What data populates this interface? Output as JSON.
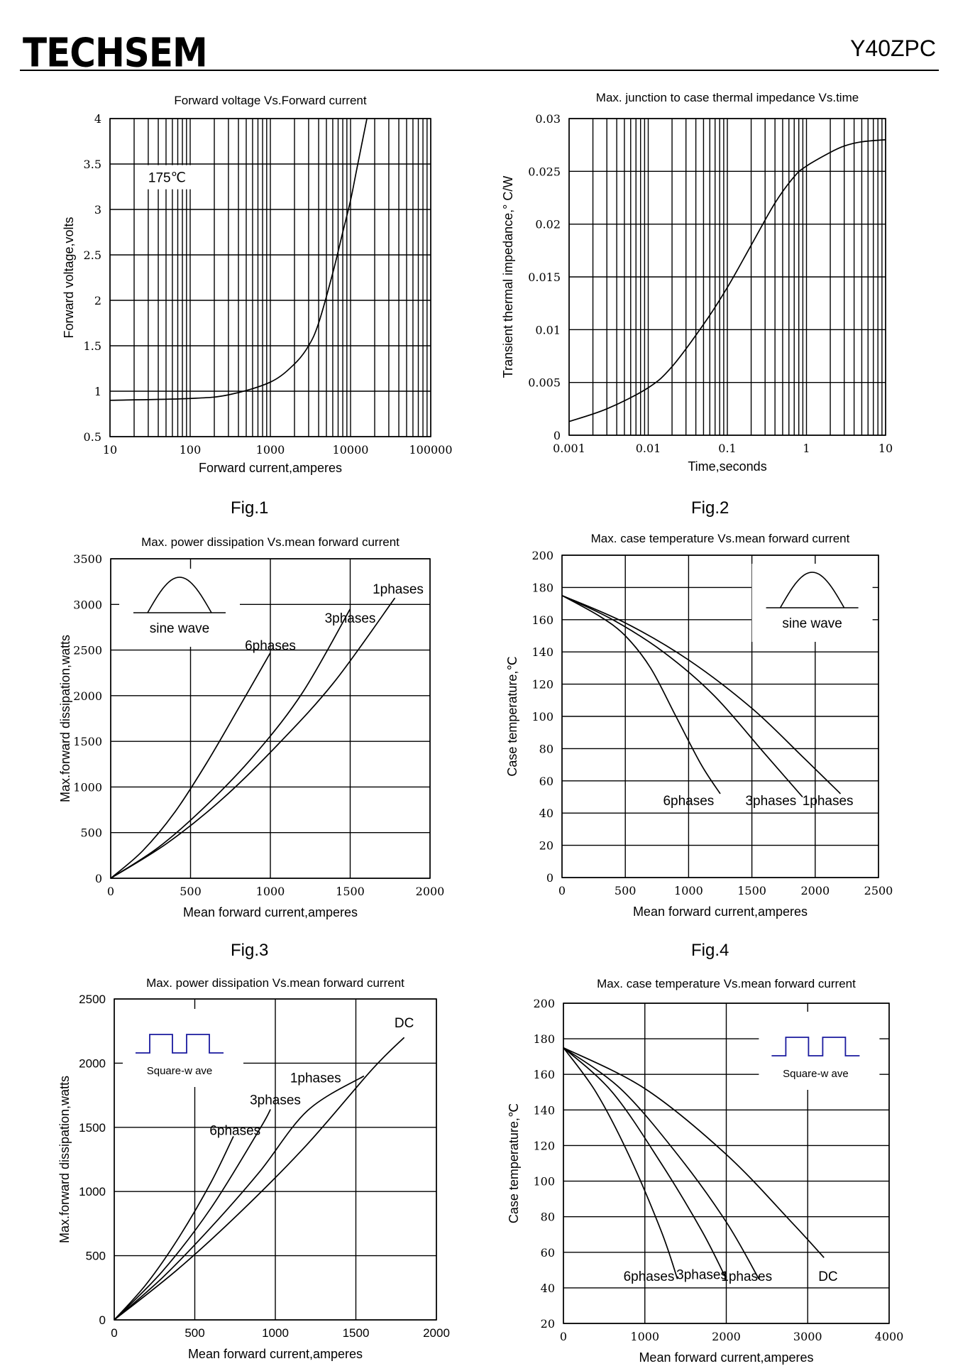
{
  "header": {
    "logo": "TECHSEM",
    "part_number": "Y40ZPC"
  },
  "figures": [
    "Fig.1",
    "Fig.2",
    "Fig.3",
    "Fig.4"
  ],
  "chart_data": [
    {
      "id": "fig1",
      "type": "line",
      "title": "Forward voltage Vs.Forward current",
      "xlabel": "Forward current,amperes",
      "ylabel": "Forward voltage,volts",
      "xscale": "log",
      "xlim": [
        10,
        100000
      ],
      "ylim": [
        0.5,
        4
      ],
      "xticks": [
        10,
        100,
        1000,
        10000,
        100000
      ],
      "xtick_labels": [
        "10",
        "100",
        "1000",
        "10000",
        "100000"
      ],
      "yticks": [
        0.5,
        1,
        1.5,
        2,
        2.5,
        3,
        3.5,
        4
      ],
      "ytick_labels": [
        "0.5",
        "1",
        "1.5",
        "2",
        "2.5",
        "3",
        "3.5",
        "4"
      ],
      "grid": true,
      "annotations": [
        {
          "text": "175℃",
          "x": 30,
          "y": 3.3
        }
      ],
      "series": [
        {
          "x": [
            10,
            100,
            300,
            1000,
            2000,
            3000,
            4000,
            6000,
            8000,
            10000,
            12000,
            16000
          ],
          "y": [
            0.9,
            0.92,
            0.96,
            1.1,
            1.3,
            1.5,
            1.75,
            2.3,
            2.75,
            3.1,
            3.45,
            4.0
          ]
        }
      ]
    },
    {
      "id": "fig2",
      "type": "line",
      "title": "Max. junction to case thermal impedance Vs.time",
      "xlabel": "Time,seconds",
      "ylabel": "Transient thermal impedance,° C/W",
      "xscale": "log",
      "xlim": [
        0.001,
        10
      ],
      "ylim": [
        0,
        0.03
      ],
      "xticks": [
        0.001,
        0.01,
        0.1,
        1,
        10
      ],
      "xtick_labels": [
        "0.001",
        "0.01",
        "0.1",
        "1",
        "10"
      ],
      "yticks": [
        0,
        0.005,
        0.01,
        0.015,
        0.02,
        0.025,
        0.03
      ],
      "ytick_labels": [
        "0",
        "0.005",
        "0.01",
        "0.015",
        "0.02",
        "0.025",
        "0.03"
      ],
      "grid": true,
      "series": [
        {
          "x": [
            0.001,
            0.003,
            0.01,
            0.02,
            0.05,
            0.1,
            0.2,
            0.4,
            0.7,
            1,
            2,
            3,
            5,
            10
          ],
          "y": [
            0.0013,
            0.0025,
            0.0045,
            0.0065,
            0.0105,
            0.014,
            0.018,
            0.022,
            0.0245,
            0.0255,
            0.0268,
            0.0274,
            0.0278,
            0.028
          ]
        }
      ]
    },
    {
      "id": "fig3",
      "type": "line",
      "title": "Max. power dissipation Vs.mean forward current",
      "xlabel": "Mean forward current,amperes",
      "ylabel": "Max.forward dissipation,watts",
      "xlim": [
        0,
        2000
      ],
      "ylim": [
        0,
        3500
      ],
      "xticks": [
        0,
        500,
        1000,
        1500,
        2000
      ],
      "xtick_labels": [
        "0",
        "500",
        "1000",
        "1500",
        "2000"
      ],
      "yticks": [
        0,
        500,
        1000,
        1500,
        2000,
        2500,
        3000,
        3500
      ],
      "ytick_labels": [
        "0",
        "500",
        "1000",
        "1500",
        "2000",
        "2500",
        "3000",
        "3500"
      ],
      "grid": true,
      "inset_label": "sine wave",
      "series": [
        {
          "name": "6phases",
          "x": [
            0,
            200,
            400,
            600,
            800,
            1000
          ],
          "y": [
            0,
            300,
            720,
            1260,
            1860,
            2470
          ],
          "label_x": 1000,
          "label_y": 2500
        },
        {
          "name": "3phases",
          "x": [
            0,
            300,
            600,
            900,
            1200,
            1500
          ],
          "y": [
            0,
            340,
            800,
            1350,
            2030,
            2950
          ],
          "label_x": 1500,
          "label_y": 2800
        },
        {
          "name": "1phases",
          "x": [
            0,
            350,
            700,
            1050,
            1400,
            1780
          ],
          "y": [
            0,
            380,
            870,
            1470,
            2150,
            3070
          ],
          "label_x": 1800,
          "label_y": 3120
        }
      ]
    },
    {
      "id": "fig4",
      "type": "line",
      "title": "Max. case temperature Vs.mean forward current",
      "xlabel": "Mean forward current,amperes",
      "ylabel": "Case temperature,℃",
      "xlim": [
        0,
        2500
      ],
      "ylim": [
        0,
        200
      ],
      "xticks": [
        0,
        500,
        1000,
        1500,
        2000,
        2500
      ],
      "xtick_labels": [
        "0",
        "500",
        "1000",
        "1500",
        "2000",
        "2500"
      ],
      "yticks": [
        0,
        20,
        40,
        60,
        80,
        100,
        120,
        140,
        160,
        180,
        200
      ],
      "ytick_labels": [
        "0",
        "20",
        "40",
        "60",
        "80",
        "100",
        "120",
        "140",
        "160",
        "180",
        "200"
      ],
      "grid": true,
      "inset_label": "sine wave",
      "series": [
        {
          "name": "6phases",
          "x": [
            0,
            300,
            500,
            700,
            900,
            1100,
            1250
          ],
          "y": [
            175,
            162,
            150,
            130,
            100,
            70,
            52
          ],
          "label_x": 1000,
          "label_y": 45
        },
        {
          "name": "3phases",
          "x": [
            0,
            400,
            800,
            1200,
            1600,
            1900
          ],
          "y": [
            175,
            160,
            140,
            113,
            77,
            50
          ],
          "label_x": 1650,
          "label_y": 45
        },
        {
          "name": "1phases",
          "x": [
            0,
            500,
            1000,
            1500,
            1900,
            2200
          ],
          "y": [
            175,
            158,
            135,
            105,
            75,
            52
          ],
          "label_x": 2100,
          "label_y": 45
        }
      ]
    },
    {
      "id": "fig5",
      "type": "line",
      "title": "Max. power dissipation Vs.mean forward current",
      "xlabel": "Mean forward current,amperes",
      "ylabel": "Max.forward dissipation,watts",
      "xlim": [
        0,
        2000
      ],
      "ylim": [
        0,
        2500
      ],
      "xticks": [
        0,
        500,
        1000,
        1500,
        2000
      ],
      "xtick_labels": [
        "0",
        "500",
        "1000",
        "1500",
        "2000"
      ],
      "yticks": [
        0,
        500,
        1000,
        1500,
        2000,
        2500
      ],
      "ytick_labels": [
        "0",
        "500",
        "1000",
        "1500",
        "2000",
        "2500"
      ],
      "grid": true,
      "inset_label": "Square-w ave",
      "series": [
        {
          "name": "6phases",
          "x": [
            0,
            200,
            400,
            600,
            740
          ],
          "y": [
            0,
            280,
            640,
            1070,
            1430
          ],
          "label_x": 750,
          "label_y": 1440
        },
        {
          "name": "3phases",
          "x": [
            0,
            300,
            600,
            900,
            970
          ],
          "y": [
            0,
            380,
            870,
            1480,
            1640
          ],
          "label_x": 1000,
          "label_y": 1680
        },
        {
          "name": "1phases",
          "x": [
            0,
            300,
            600,
            900,
            1200,
            1550
          ],
          "y": [
            0,
            330,
            720,
            1150,
            1630,
            1900
          ],
          "label_x": 1250,
          "label_y": 1850
        },
        {
          "name": "DC",
          "x": [
            0,
            400,
            800,
            1200,
            1600,
            1800
          ],
          "y": [
            0,
            400,
            860,
            1370,
            1950,
            2200
          ],
          "label_x": 1800,
          "label_y": 2280
        }
      ]
    },
    {
      "id": "fig6",
      "type": "line",
      "title": "Max. case temperature Vs.mean forward current",
      "xlabel": "Mean forward current,amperes",
      "ylabel": "Case temperature,℃",
      "xlim": [
        0,
        4000
      ],
      "ylim": [
        20,
        200
      ],
      "xticks": [
        0,
        1000,
        2000,
        3000,
        4000
      ],
      "xtick_labels": [
        "0",
        "1000",
        "2000",
        "3000",
        "4000"
      ],
      "yticks": [
        20,
        40,
        60,
        80,
        100,
        120,
        140,
        160,
        180,
        200
      ],
      "ytick_labels": [
        "20",
        "40",
        "60",
        "80",
        "100",
        "120",
        "140",
        "160",
        "180",
        "200"
      ],
      "grid": true,
      "inset_label": "Square-w ave",
      "series": [
        {
          "name": "6phases",
          "x": [
            0,
            400,
            800,
            1200,
            1400
          ],
          "y": [
            175,
            150,
            115,
            72,
            45
          ],
          "label_x": 1050,
          "label_y": 44
        },
        {
          "name": "3phases",
          "x": [
            0,
            600,
            1200,
            1700,
            2000
          ],
          "y": [
            175,
            150,
            110,
            72,
            45
          ],
          "label_x": 1700,
          "label_y": 45
        },
        {
          "name": "1phases",
          "x": [
            0,
            700,
            1400,
            2000,
            2400
          ],
          "y": [
            175,
            152,
            115,
            77,
            45
          ],
          "label_x": 2250,
          "label_y": 44
        },
        {
          "name": "DC",
          "x": [
            0,
            1000,
            2000,
            2800,
            3200
          ],
          "y": [
            175,
            152,
            115,
            77,
            57
          ],
          "label_x": 3250,
          "label_y": 44
        }
      ]
    }
  ]
}
